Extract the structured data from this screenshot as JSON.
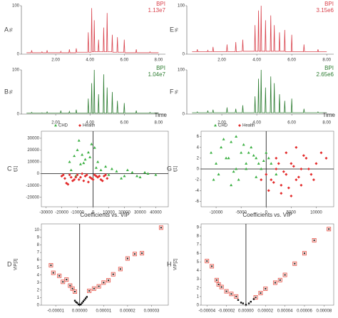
{
  "chart_data": [
    {
      "type": "line",
      "panel": "A",
      "ylabel": "%",
      "intensity": "1.13e7",
      "xlim": [
        0,
        8.4
      ],
      "ylim": [
        0,
        100
      ],
      "yticks": [
        0,
        100
      ],
      "xticks": [
        {
          "value": 2,
          "label": "2.00"
        },
        {
          "value": 4,
          "label": "4.00"
        },
        {
          "value": 6,
          "label": "6.00"
        },
        {
          "value": 8,
          "label": "8.00"
        }
      ],
      "x": [
        0.3,
        0.57,
        0.6,
        0.63,
        1.17,
        1.2,
        1.23,
        1.47,
        1.5,
        1.53,
        2.27,
        2.3,
        2.33,
        2.77,
        2.8,
        2.83,
        3.17,
        3.2,
        3.23,
        3.87,
        3.9,
        3.93,
        4.07,
        4.1,
        4.13,
        4.22,
        4.25,
        4.28,
        4.47,
        4.5,
        4.53,
        4.77,
        4.8,
        4.83,
        4.97,
        5.0,
        5.03,
        5.27,
        5.3,
        5.33,
        5.57,
        5.6,
        5.63,
        5.97,
        6.0,
        6.03,
        6.67,
        6.7,
        6.73,
        7.47,
        7.5,
        7.53,
        8.0
      ],
      "series": [
        {
          "name": "BPI",
          "color": "#d9444e",
          "values": [
            3,
            3,
            8,
            3,
            3,
            5,
            3,
            3,
            8,
            3,
            3,
            6,
            3,
            3,
            10,
            3,
            3,
            12,
            4,
            4,
            45,
            4,
            4,
            95,
            5,
            5,
            70,
            5,
            5,
            30,
            5,
            5,
            55,
            5,
            5,
            85,
            5,
            5,
            40,
            4,
            4,
            35,
            4,
            4,
            30,
            3,
            3,
            10,
            3,
            3,
            5,
            3,
            3
          ]
        }
      ]
    },
    {
      "type": "line",
      "panel": "B",
      "ylabel": "%",
      "xlabel": "Time",
      "intensity": "1.04e7",
      "xlim": [
        0,
        8.4
      ],
      "ylim": [
        0,
        100
      ],
      "yticks": [
        0,
        100
      ],
      "xticks": [
        {
          "value": 2,
          "label": "2.00"
        },
        {
          "value": 4,
          "label": "4.00"
        },
        {
          "value": 6,
          "label": "6.00"
        },
        {
          "value": 8,
          "label": "8.00"
        }
      ],
      "x": [
        0.3,
        0.57,
        0.6,
        0.63,
        1.17,
        1.2,
        1.23,
        1.47,
        1.5,
        1.53,
        2.27,
        2.3,
        2.33,
        2.77,
        2.8,
        2.83,
        3.17,
        3.2,
        3.23,
        3.87,
        3.9,
        3.93,
        4.07,
        4.1,
        4.13,
        4.22,
        4.25,
        4.28,
        4.47,
        4.5,
        4.53,
        4.77,
        4.8,
        4.83,
        4.97,
        5.0,
        5.03,
        5.27,
        5.3,
        5.33,
        5.57,
        5.6,
        5.63,
        5.97,
        6.0,
        6.03,
        6.67,
        6.7,
        6.73,
        7.47,
        7.5,
        7.53,
        8.0
      ],
      "series": [
        {
          "name": "BPI",
          "color": "#2e7d32",
          "values": [
            2,
            2,
            4,
            2,
            2,
            3,
            2,
            2,
            5,
            2,
            2,
            8,
            2,
            2,
            6,
            2,
            2,
            10,
            2,
            2,
            35,
            2,
            2,
            70,
            2,
            2,
            100,
            2,
            2,
            45,
            2,
            2,
            90,
            2,
            2,
            60,
            2,
            2,
            50,
            2,
            2,
            30,
            2,
            2,
            25,
            2,
            2,
            8,
            2,
            2,
            4,
            2,
            2
          ]
        }
      ]
    },
    {
      "type": "scatter",
      "panel": "C",
      "ylabel": "t[1]",
      "legend": "top",
      "xlim": [
        -33000,
        48000
      ],
      "ylim": [
        -28000,
        36000
      ],
      "xticks": [
        -30000,
        -20000,
        -10000,
        0,
        10000,
        20000,
        30000,
        40000
      ],
      "yticks": [
        -20000,
        -10000,
        0,
        10000,
        20000,
        30000
      ],
      "series": [
        {
          "name": "CHD",
          "color": "#3cb043",
          "marker": "triangle",
          "x": [
            -15000,
            -12000,
            -10000,
            -8000,
            -5000,
            -3000,
            -1000,
            2000,
            -14000,
            -9000,
            -6000,
            -2000,
            1000,
            -11000,
            -7000,
            5000,
            10000,
            15000,
            20000,
            25000,
            30000,
            35000,
            40000,
            12000,
            18000,
            22000,
            28000,
            33000,
            8000,
            3000
          ],
          "values": [
            10000,
            15000,
            20000,
            8000,
            12000,
            18000,
            25000,
            5000,
            3000,
            28000,
            9000,
            14000,
            22000,
            -2000,
            16000,
            3000,
            -1000,
            2000,
            -2000,
            1000,
            -3000,
            0,
            -1000,
            4000,
            -4000,
            3000,
            -2000,
            1000,
            6000,
            10000
          ]
        },
        {
          "name": "Health",
          "color": "#e32b2b",
          "marker": "diamond",
          "x": [
            -20000,
            -18000,
            -15000,
            -13000,
            -11000,
            -9000,
            -7000,
            -5000,
            -3000,
            -1000,
            1000,
            3000,
            5000,
            7000,
            9000,
            -17000,
            -14000,
            -10000,
            -6000,
            -2000,
            2000,
            6000,
            -19000,
            -12000,
            -8000,
            -4000,
            0,
            4000,
            8000,
            -16000
          ],
          "values": [
            -2000,
            -4000,
            -1000,
            -6000,
            -3000,
            -5000,
            0,
            -2000,
            -7000,
            -4000,
            -1000,
            -3000,
            -5000,
            -2000,
            -4000,
            -8000,
            -3000,
            -1000,
            -6000,
            -3000,
            -2000,
            -6000,
            -1000,
            -5000,
            -3000,
            -1000,
            -5000,
            -2000,
            -1000,
            -9000
          ]
        }
      ]
    },
    {
      "type": "scatter",
      "panel": "D",
      "title": "Coefficients vs. VIP",
      "ylabel": "VIP[3]",
      "xlim": [
        -1.6e-05,
        3.7e-05
      ],
      "ylim": [
        0,
        10.8
      ],
      "xticks": [
        {
          "value": -1e-05,
          "label": "-0.00001"
        },
        {
          "value": 0,
          "label": "0.00000"
        },
        {
          "value": 1e-05,
          "label": "0.00001"
        },
        {
          "value": 2e-05,
          "label": "0.00002"
        },
        {
          "value": 3e-05,
          "label": "0.00003"
        }
      ],
      "yticks": [
        0,
        1,
        2,
        3,
        4,
        5,
        6,
        7,
        8,
        9,
        10
      ],
      "series": [
        {
          "color": "#e85a4f",
          "marker": "box",
          "x": [
            -1.2e-05,
            -1.1e-05,
            -8.5e-06,
            -7e-06,
            -5.5e-06,
            -4e-06,
            -3e-06,
            -2e-06,
            4e-06,
            6e-06,
            8e-06,
            1e-05,
            1.2e-05,
            1.4e-05,
            1.7e-05,
            2e-05,
            2.3e-05,
            2.6e-05,
            3.4e-05
          ],
          "values": [
            5.3,
            4.3,
            3.9,
            3.1,
            3.4,
            2.6,
            2.2,
            1.8,
            1.9,
            2.2,
            2.5,
            3.0,
            3.3,
            4.1,
            4.8,
            6.2,
            6.8,
            6.9,
            10.3
          ]
        },
        {
          "color": "#111111",
          "marker": "square",
          "x": [
            -2e-06,
            -1.5e-06,
            -1e-06,
            -5e-07,
            0,
            5e-07,
            1e-06,
            1.5e-06,
            2e-06,
            2.5e-06,
            3e-06
          ],
          "values": [
            0.6,
            0.4,
            0.3,
            0.1,
            0.05,
            0.1,
            0.3,
            0.5,
            0.7,
            0.9,
            1.1
          ]
        }
      ]
    },
    {
      "type": "line",
      "panel": "E",
      "ylabel": "%",
      "intensity": "3.15e6",
      "xlim": [
        0,
        8.4
      ],
      "ylim": [
        0,
        100
      ],
      "yticks": [
        0,
        100
      ],
      "xticks": [
        {
          "value": 2,
          "label": "2.00"
        },
        {
          "value": 4,
          "label": "4.00"
        },
        {
          "value": 6,
          "label": "6.00"
        },
        {
          "value": 8,
          "label": "8.00"
        }
      ],
      "x": [
        0.3,
        0.57,
        0.6,
        0.63,
        1.17,
        1.2,
        1.23,
        1.47,
        1.5,
        1.53,
        2.27,
        2.3,
        2.33,
        2.77,
        2.8,
        2.83,
        3.17,
        3.2,
        3.23,
        3.87,
        3.9,
        3.93,
        4.07,
        4.1,
        4.13,
        4.22,
        4.25,
        4.28,
        4.47,
        4.5,
        4.53,
        4.77,
        4.8,
        4.83,
        4.97,
        5.0,
        5.03,
        5.27,
        5.3,
        5.33,
        5.57,
        5.6,
        5.63,
        5.97,
        6.0,
        6.03,
        6.67,
        6.7,
        6.73,
        7.47,
        7.5,
        7.53,
        8.0
      ],
      "series": [
        {
          "name": "BPI",
          "color": "#d9444e",
          "values": [
            5,
            5,
            10,
            5,
            5,
            8,
            5,
            5,
            15,
            5,
            5,
            20,
            5,
            5,
            25,
            5,
            6,
            30,
            6,
            6,
            60,
            6,
            6,
            90,
            6,
            6,
            100,
            6,
            6,
            70,
            6,
            6,
            80,
            6,
            6,
            60,
            6,
            6,
            45,
            6,
            6,
            50,
            5,
            5,
            40,
            5,
            5,
            20,
            5,
            5,
            10,
            5,
            5
          ]
        }
      ]
    },
    {
      "type": "line",
      "panel": "F",
      "ylabel": "%",
      "xlabel": "Time",
      "intensity": "2.65e6",
      "xlim": [
        0,
        8.4
      ],
      "ylim": [
        0,
        100
      ],
      "yticks": [
        0,
        100
      ],
      "xticks": [
        {
          "value": 2,
          "label": "2.00"
        },
        {
          "value": 4,
          "label": "4.00"
        },
        {
          "value": 6,
          "label": "6.00"
        },
        {
          "value": 8,
          "label": "8.00"
        }
      ],
      "x": [
        0.3,
        0.57,
        0.6,
        0.63,
        1.17,
        1.2,
        1.23,
        1.47,
        1.5,
        1.53,
        2.27,
        2.3,
        2.33,
        2.77,
        2.8,
        2.83,
        3.17,
        3.2,
        3.23,
        3.87,
        3.9,
        3.93,
        4.07,
        4.1,
        4.13,
        4.22,
        4.25,
        4.28,
        4.47,
        4.5,
        4.53,
        4.77,
        4.8,
        4.83,
        4.97,
        5.0,
        5.03,
        5.27,
        5.3,
        5.33,
        5.57,
        5.6,
        5.63,
        5.97,
        6.0,
        6.03,
        6.67,
        6.7,
        6.73,
        7.47,
        7.5,
        7.53,
        8.0
      ],
      "series": [
        {
          "name": "BPI",
          "color": "#2e7d32",
          "values": [
            3,
            3,
            5,
            3,
            3,
            8,
            3,
            3,
            10,
            3,
            3,
            15,
            3,
            3,
            12,
            3,
            3,
            20,
            3,
            3,
            40,
            3,
            3,
            80,
            3,
            3,
            100,
            3,
            3,
            60,
            3,
            3,
            85,
            3,
            3,
            70,
            3,
            3,
            45,
            3,
            3,
            30,
            3,
            3,
            35,
            3,
            3,
            12,
            3,
            3,
            5,
            3,
            3
          ]
        }
      ]
    },
    {
      "type": "scatter",
      "panel": "G",
      "ylabel": "t[1]",
      "legend": "top",
      "xlim": [
        -13000,
        13500
      ],
      "ylim": [
        -7,
        7
      ],
      "xticks": [
        -10000,
        -5000,
        0,
        5000,
        10000
      ],
      "yticks": [
        -6,
        -4,
        -2,
        0,
        2,
        4,
        6
      ],
      "series": [
        {
          "name": "CHD",
          "color": "#3cb043",
          "marker": "triangle",
          "x": [
            -11000,
            -10000,
            -9000,
            -8000,
            -7000,
            -6000,
            -5000,
            -4000,
            -3000,
            -2000,
            -1000,
            0,
            1000,
            2000,
            -9500,
            -7500,
            -5500,
            -3500,
            -1500,
            -8500,
            -6500,
            -4500,
            -2500,
            -500,
            -10500,
            -6000,
            -4000,
            -2000,
            500,
            -7000
          ],
          "values": [
            3,
            1,
            4,
            2,
            5,
            0,
            3,
            1,
            4,
            2,
            0,
            3,
            1,
            -1,
            -1,
            2,
            -2,
            3,
            1,
            5.5,
            -0.5,
            4.5,
            2.5,
            1.5,
            -2,
            6,
            0,
            -1.5,
            2,
            -3
          ]
        },
        {
          "name": "Health",
          "color": "#e32b2b",
          "marker": "diamond",
          "x": [
            0,
            1000,
            2000,
            3000,
            4000,
            5000,
            6000,
            7000,
            8000,
            9000,
            10000,
            11000,
            500,
            1500,
            2500,
            3500,
            4500,
            5500,
            6500,
            7500,
            8500,
            9500,
            3000,
            5000,
            7000,
            -1000,
            2000,
            4000,
            6000,
            12000
          ],
          "values": [
            -1,
            -2,
            0,
            -3,
            -1,
            1,
            -2,
            0,
            2,
            -1,
            1,
            3,
            -4,
            -2.5,
            1,
            -0.5,
            -3.5,
            0.5,
            -1.5,
            2.5,
            0,
            -2,
            -4.5,
            -5,
            -3,
            -2,
            2,
            3,
            4,
            2
          ]
        }
      ]
    },
    {
      "type": "scatter",
      "panel": "H",
      "title": "Coefficients vs. VIP",
      "ylabel": "VIP[2]",
      "xlim": [
        -4.6e-05,
        9e-05
      ],
      "ylim": [
        0,
        9.4
      ],
      "xticks": [
        {
          "value": -4e-05,
          "label": "-0.00004"
        },
        {
          "value": -2e-05,
          "label": "-0.00002"
        },
        {
          "value": 0,
          "label": "0.00000"
        },
        {
          "value": 2e-05,
          "label": "0.00002"
        },
        {
          "value": 4e-05,
          "label": "0.00004"
        },
        {
          "value": 6e-05,
          "label": "0.00006"
        },
        {
          "value": 8e-05,
          "label": "0.00008"
        }
      ],
      "yticks": [
        0,
        1,
        2,
        3,
        4,
        5,
        6,
        7,
        8,
        9
      ],
      "series": [
        {
          "color": "#e85a4f",
          "marker": "box",
          "x": [
            -4e-05,
            -3.5e-05,
            -3e-05,
            -2.8e-05,
            -2.5e-05,
            -2e-05,
            -1.5e-05,
            -1e-05,
            1e-05,
            1.5e-05,
            2e-05,
            3e-05,
            3.5e-05,
            4e-05,
            5e-05,
            6e-05,
            7e-05,
            8.5e-05
          ],
          "values": [
            5.1,
            4.5,
            2.9,
            2.4,
            2.1,
            1.6,
            1.3,
            1.0,
            0.9,
            1.4,
            1.9,
            2.6,
            2.9,
            3.5,
            4.8,
            6.0,
            7.5,
            8.8
          ]
        },
        {
          "color": "#111111",
          "marker": "square",
          "x": [
            -8e-06,
            -5e-06,
            -3e-06,
            0,
            3e-06,
            5e-06,
            8e-06
          ],
          "values": [
            0.6,
            0.3,
            0.2,
            0.05,
            0.2,
            0.4,
            0.7
          ]
        }
      ]
    }
  ]
}
